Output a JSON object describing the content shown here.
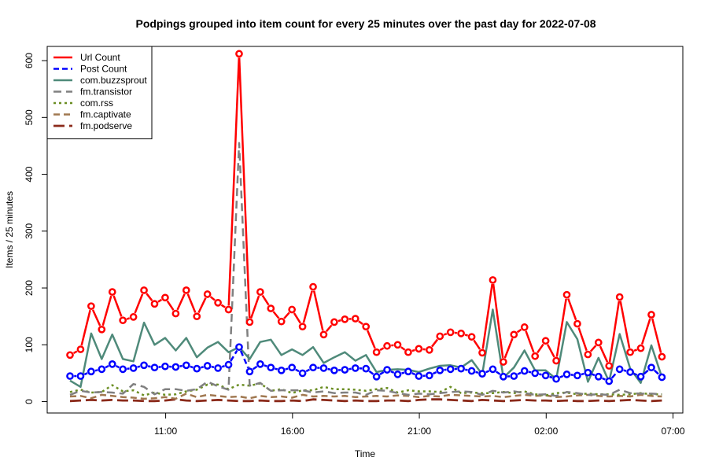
{
  "chart_data": {
    "type": "line",
    "title": "Podpings grouped into item count for every 25 minutes  over the past day for 2022-07-08",
    "xlabel": "Time",
    "ylabel": "Items / 25 minutes",
    "ylim": [
      -20,
      625
    ],
    "yticks": [
      0,
      100,
      200,
      300,
      400,
      500,
      600
    ],
    "x_ticks": [
      {
        "label": "11:00",
        "index": 9.05
      },
      {
        "label": "16:00",
        "index": 21.05
      },
      {
        "label": "21:00",
        "index": 33.05
      },
      {
        "label": "02:00",
        "index": 45.05
      },
      {
        "label": "07:00",
        "index": 57.05
      }
    ],
    "x_count": 58,
    "legend": {
      "position": "top-left",
      "entries": [
        "Url Count",
        "Post Count",
        "com.buzzsprout",
        "fm.transistor",
        "com.rss",
        "fm.captivate",
        "fm.podserve"
      ]
    },
    "series": [
      {
        "name": "Url Count",
        "color": "#ff0000",
        "dash": "",
        "width": 2.5,
        "markers": true,
        "values": [
          82,
          92,
          168,
          127,
          193,
          143,
          149,
          196,
          172,
          183,
          155,
          196,
          150,
          189,
          174,
          162,
          612,
          140,
          193,
          164,
          141,
          162,
          132,
          202,
          118,
          140,
          145,
          146,
          132,
          87,
          98,
          100,
          87,
          93,
          91,
          115,
          122,
          120,
          114,
          86,
          214,
          70,
          118,
          131,
          80,
          107,
          72,
          188,
          137,
          83,
          104,
          63,
          184,
          87,
          94,
          153,
          79
        ]
      },
      {
        "name": "Post Count",
        "color": "#0000ff",
        "dash": "7,4",
        "width": 2.5,
        "markers": true,
        "values": [
          45,
          45,
          53,
          57,
          66,
          57,
          59,
          64,
          60,
          62,
          61,
          64,
          58,
          63,
          59,
          65,
          96,
          53,
          66,
          60,
          55,
          60,
          50,
          60,
          59,
          55,
          56,
          59,
          58,
          44,
          56,
          48,
          53,
          45,
          46,
          55,
          57,
          58,
          54,
          49,
          57,
          44,
          45,
          54,
          50,
          46,
          40,
          48,
          46,
          51,
          44,
          36,
          57,
          52,
          44,
          60,
          43
        ]
      },
      {
        "name": "com.buzzsprout",
        "color": "#4f8a7a",
        "dash": "",
        "width": 2.5,
        "markers": false,
        "values": [
          37,
          26,
          120,
          75,
          118,
          75,
          71,
          139,
          100,
          112,
          90,
          112,
          78,
          95,
          105,
          87,
          96,
          75,
          105,
          109,
          82,
          92,
          82,
          96,
          68,
          78,
          87,
          72,
          82,
          52,
          56,
          57,
          56,
          52,
          58,
          63,
          64,
          60,
          73,
          48,
          162,
          42,
          60,
          90,
          55,
          55,
          40,
          140,
          110,
          35,
          77,
          35,
          119,
          58,
          33,
          99,
          43
        ]
      },
      {
        "name": "fm.transistor",
        "color": "#808080",
        "dash": "10,6",
        "width": 2.5,
        "markers": false,
        "values": [
          12,
          19,
          16,
          17,
          16,
          14,
          31,
          26,
          13,
          22,
          22,
          19,
          22,
          35,
          27,
          21,
          455,
          28,
          33,
          19,
          20,
          20,
          20,
          16,
          18,
          15,
          16,
          16,
          12,
          20,
          19,
          15,
          12,
          14,
          13,
          15,
          17,
          18,
          17,
          12,
          19,
          16,
          18,
          15,
          12,
          13,
          10,
          17,
          15,
          12,
          13,
          12,
          21,
          15,
          14,
          14,
          13
        ]
      },
      {
        "name": "com.rss",
        "color": "#6b8e23",
        "dash": "3,4",
        "width": 2.5,
        "markers": false,
        "values": [
          17,
          21,
          16,
          17,
          29,
          18,
          20,
          11,
          16,
          12,
          13,
          18,
          21,
          30,
          30,
          22,
          30,
          28,
          32,
          19,
          22,
          15,
          20,
          20,
          26,
          22,
          22,
          21,
          19,
          22,
          24,
          16,
          20,
          18,
          18,
          17,
          26,
          15,
          16,
          15,
          15,
          17,
          15,
          18,
          13,
          11,
          15,
          16,
          13,
          14,
          13,
          13,
          12,
          13,
          15,
          13,
          13
        ]
      },
      {
        "name": "fm.captivate",
        "color": "#a07850",
        "dash": "8,5",
        "width": 2.5,
        "markers": false,
        "values": [
          9,
          10,
          6,
          12,
          10,
          8,
          7,
          5,
          6,
          8,
          5,
          14,
          8,
          12,
          10,
          8,
          9,
          6,
          10,
          8,
          9,
          7,
          12,
          9,
          10,
          9,
          10,
          8,
          9,
          10,
          9,
          11,
          10,
          8,
          10,
          9,
          12,
          11,
          10,
          9,
          10,
          8,
          10,
          12,
          10,
          11,
          8,
          9,
          11,
          12,
          10,
          9,
          10,
          9,
          12,
          10,
          9
        ]
      },
      {
        "name": "fm.podserve",
        "color": "#8b2a1a",
        "dash": "14,6",
        "width": 2.8,
        "markers": false,
        "values": [
          1,
          2,
          3,
          2,
          3,
          2,
          2,
          1,
          1,
          2,
          4,
          2,
          1,
          2,
          3,
          2,
          1,
          1,
          2,
          1,
          1,
          2,
          1,
          4,
          3,
          2,
          1,
          2,
          1,
          1,
          2,
          2,
          1,
          3,
          4,
          4,
          3,
          2,
          1,
          3,
          2,
          1,
          2,
          3,
          2,
          2,
          1,
          2,
          1,
          1,
          2,
          1,
          2,
          3,
          2,
          1,
          2
        ]
      }
    ]
  }
}
